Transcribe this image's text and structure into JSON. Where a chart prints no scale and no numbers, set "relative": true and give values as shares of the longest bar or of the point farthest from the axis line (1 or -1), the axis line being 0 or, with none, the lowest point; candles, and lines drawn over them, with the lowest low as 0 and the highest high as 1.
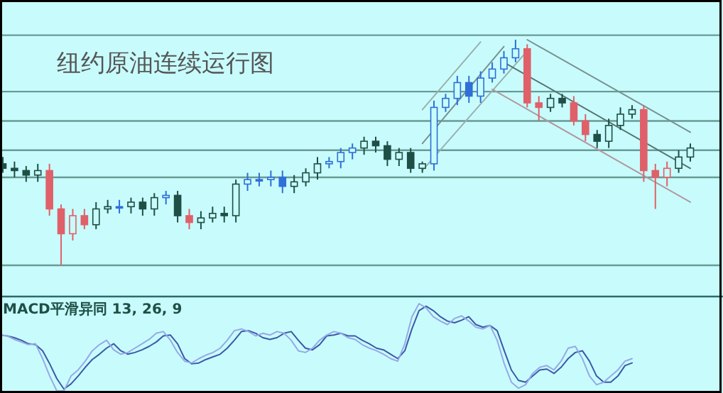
{
  "chart_data": [
    {
      "type": "candlestick",
      "title": "纽约原油连续运行图",
      "relative": true,
      "categories": [
        null,
        null,
        null,
        null,
        null,
        null,
        null,
        null,
        null,
        null,
        null,
        null,
        null,
        null,
        null,
        null,
        null,
        null,
        null,
        null,
        null,
        null,
        null,
        null,
        null,
        null,
        null,
        null,
        null,
        null,
        null,
        null,
        null,
        null,
        null,
        null,
        null,
        null,
        null,
        null,
        null,
        null,
        null,
        null,
        null,
        null,
        null,
        null,
        null,
        null,
        null,
        null,
        null,
        null,
        null,
        null,
        null,
        null,
        null,
        null
      ],
      "ohlc": [
        [
          0.45,
          0.48,
          0.41,
          0.43
        ],
        [
          0.43,
          0.46,
          0.39,
          0.42
        ],
        [
          0.42,
          0.44,
          0.37,
          0.4
        ],
        [
          0.4,
          0.45,
          0.37,
          0.42
        ],
        [
          0.42,
          0.45,
          0.22,
          0.25
        ],
        [
          0.25,
          0.27,
          0,
          0.14
        ],
        [
          0.14,
          0.25,
          0.11,
          0.22
        ],
        [
          0.22,
          0.25,
          0.16,
          0.18
        ],
        [
          0.18,
          0.28,
          0.16,
          0.25
        ],
        [
          0.25,
          0.29,
          0.23,
          0.26
        ],
        [
          0.26,
          0.29,
          0.23,
          0.26
        ],
        [
          0.26,
          0.3,
          0.23,
          0.28
        ],
        [
          0.28,
          0.3,
          0.22,
          0.25
        ],
        [
          0.25,
          0.32,
          0.22,
          0.3
        ],
        [
          0.3,
          0.33,
          0.27,
          0.31
        ],
        [
          0.31,
          0.33,
          0.19,
          0.22
        ],
        [
          0.22,
          0.25,
          0.16,
          0.19
        ],
        [
          0.19,
          0.24,
          0.16,
          0.21
        ],
        [
          0.21,
          0.26,
          0.19,
          0.23
        ],
        [
          0.23,
          0.26,
          0.19,
          0.22
        ],
        [
          0.22,
          0.38,
          0.19,
          0.36
        ],
        [
          0.36,
          0.41,
          0.33,
          0.38
        ],
        [
          0.38,
          0.41,
          0.35,
          0.38
        ],
        [
          0.38,
          0.42,
          0.35,
          0.39
        ],
        [
          0.39,
          0.42,
          0.32,
          0.35
        ],
        [
          0.35,
          0.4,
          0.32,
          0.37
        ],
        [
          0.37,
          0.43,
          0.35,
          0.41
        ],
        [
          0.41,
          0.48,
          0.38,
          0.45
        ],
        [
          0.45,
          0.48,
          0.43,
          0.46
        ],
        [
          0.46,
          0.52,
          0.43,
          0.5
        ],
        [
          0.5,
          0.54,
          0.47,
          0.52
        ],
        [
          0.52,
          0.57,
          0.49,
          0.55
        ],
        [
          0.55,
          0.57,
          0.5,
          0.53
        ],
        [
          0.53,
          0.55,
          0.44,
          0.47
        ],
        [
          0.47,
          0.52,
          0.44,
          0.5
        ],
        [
          0.5,
          0.52,
          0.41,
          0.43
        ],
        [
          0.43,
          0.46,
          0.41,
          0.45
        ],
        [
          0.45,
          0.73,
          0.42,
          0.7
        ],
        [
          0.7,
          0.76,
          0.68,
          0.74
        ],
        [
          0.74,
          0.84,
          0.71,
          0.81
        ],
        [
          0.81,
          0.84,
          0.72,
          0.75
        ],
        [
          0.75,
          0.86,
          0.72,
          0.83
        ],
        [
          0.83,
          0.9,
          0.81,
          0.87
        ],
        [
          0.87,
          0.95,
          0.85,
          0.92
        ],
        [
          0.92,
          1.0,
          0.9,
          0.96
        ],
        [
          0.96,
          0.98,
          0.7,
          0.72
        ],
        [
          0.72,
          0.75,
          0.64,
          0.7
        ],
        [
          0.7,
          0.76,
          0.68,
          0.74
        ],
        [
          0.74,
          0.76,
          0.7,
          0.72
        ],
        [
          0.72,
          0.75,
          0.62,
          0.64
        ],
        [
          0.64,
          0.67,
          0.55,
          0.58
        ],
        [
          0.58,
          0.6,
          0.52,
          0.55
        ],
        [
          0.55,
          0.65,
          0.52,
          0.62
        ],
        [
          0.62,
          0.7,
          0.6,
          0.67
        ],
        [
          0.67,
          0.71,
          0.65,
          0.69
        ],
        [
          0.69,
          0.71,
          0.37,
          0.42
        ],
        [
          0.42,
          0.45,
          0.25,
          0.39
        ],
        [
          0.39,
          0.46,
          0.35,
          0.43
        ],
        [
          0.43,
          0.51,
          0.41,
          0.48
        ],
        [
          0.48,
          0.54,
          0.46,
          0.52
        ]
      ],
      "colors": [
        "#1f4f46",
        "#1f4f46",
        "#1f4f46",
        "#1f4f46",
        "#e0606a",
        "#e0606a",
        "#e0606a",
        "#e0606a",
        "#1f4f46",
        "#1f4f46",
        "#2f6fd8",
        "#1f4f46",
        "#1f4f46",
        "#1f4f46",
        "#2f6fd8",
        "#1f4f46",
        "#e0606a",
        "#1f4f46",
        "#1f4f46",
        "#1f4f46",
        "#1f4f46",
        "#2f6fd8",
        "#2f6fd8",
        "#2f6fd8",
        "#2f6fd8",
        "#1f4f46",
        "#1f4f46",
        "#1f4f46",
        "#2f6fd8",
        "#2f6fd8",
        "#2f6fd8",
        "#1f4f46",
        "#1f4f46",
        "#1f4f46",
        "#1f4f46",
        "#1f4f46",
        "#1f4f46",
        "#2f6fd8",
        "#2f6fd8",
        "#2f6fd8",
        "#2f6fd8",
        "#2f6fd8",
        "#2f6fd8",
        "#2f6fd8",
        "#2f6fd8",
        "#e0606a",
        "#e0606a",
        "#1f4f46",
        "#1f4f46",
        "#e0606a",
        "#e0606a",
        "#1f4f46",
        "#1f4f46",
        "#1f4f46",
        "#1f4f46",
        "#e0606a",
        "#e0606a",
        "#e0606a",
        "#1f4f46",
        "#1f4f46"
      ],
      "ref_lines": [
        {
          "axis": "y",
          "value": 1.02,
          "color": "#6a9a96"
        },
        {
          "axis": "y",
          "value": 0.77,
          "color": "#6a9a96"
        },
        {
          "axis": "y",
          "value": 0.64,
          "color": "#6a9a96"
        },
        {
          "axis": "y",
          "value": 0.51,
          "color": "#6a9a96"
        },
        {
          "axis": "y",
          "value": 0.39,
          "color": "#6a9a96"
        },
        {
          "axis": "y",
          "value": 0,
          "color": "#6a9a96"
        }
      ],
      "series": [
        {
          "type": "line",
          "color": "#9ab0b0",
          "values": [
            null,
            null,
            null,
            null,
            null,
            null,
            null,
            null,
            null,
            null,
            null,
            null,
            null,
            null,
            null,
            null,
            null,
            null,
            null,
            null,
            null,
            null,
            null,
            null,
            null,
            null,
            null,
            null,
            null,
            null,
            null,
            null,
            null,
            null,
            null,
            null,
            0.42,
            null,
            null,
            null,
            null,
            null,
            null,
            null,
            null,
            0.95,
            null,
            null,
            null,
            null,
            null,
            null,
            null,
            null,
            null,
            null,
            null,
            null,
            null,
            null
          ]
        },
        {
          "type": "line",
          "color": "#7a9090",
          "values": [
            null,
            null,
            null,
            null,
            null,
            null,
            null,
            null,
            null,
            null,
            null,
            null,
            null,
            null,
            null,
            null,
            null,
            null,
            null,
            null,
            null,
            null,
            null,
            null,
            null,
            null,
            null,
            null,
            null,
            null,
            null,
            null,
            null,
            null,
            null,
            null,
            0.54,
            null,
            null,
            null,
            null,
            null,
            null,
            0.97,
            null,
            null,
            null,
            null,
            null,
            null,
            null,
            null,
            null,
            null,
            null,
            null,
            null,
            null,
            null,
            null
          ]
        },
        {
          "type": "line",
          "color": "#9ab0b0",
          "values": [
            null,
            null,
            null,
            null,
            null,
            null,
            null,
            null,
            null,
            null,
            null,
            null,
            null,
            null,
            null,
            null,
            null,
            null,
            null,
            null,
            null,
            null,
            null,
            null,
            null,
            null,
            null,
            null,
            null,
            null,
            null,
            null,
            null,
            null,
            null,
            null,
            0.69,
            null,
            null,
            null,
            null,
            0.99,
            null,
            null,
            null,
            null,
            null,
            null,
            null,
            null,
            null,
            null,
            null,
            null,
            null,
            null,
            null,
            null,
            null,
            null
          ]
        },
        {
          "type": "line",
          "color": "#7a9090",
          "values": [
            null,
            null,
            null,
            null,
            null,
            null,
            null,
            null,
            null,
            null,
            null,
            null,
            null,
            null,
            null,
            null,
            null,
            null,
            null,
            null,
            null,
            null,
            null,
            null,
            null,
            null,
            null,
            null,
            null,
            null,
            null,
            null,
            null,
            null,
            null,
            null,
            null,
            null,
            null,
            null,
            null,
            null,
            null,
            null,
            null,
            1.0,
            null,
            null,
            null,
            null,
            null,
            null,
            null,
            null,
            null,
            null,
            null,
            null,
            null,
            0.59
          ]
        },
        {
          "type": "line",
          "color": "#5a7474",
          "values": [
            null,
            null,
            null,
            null,
            null,
            null,
            null,
            null,
            null,
            null,
            null,
            null,
            null,
            null,
            null,
            null,
            null,
            null,
            null,
            null,
            null,
            null,
            null,
            null,
            null,
            null,
            null,
            null,
            null,
            null,
            null,
            null,
            null,
            null,
            null,
            null,
            null,
            null,
            null,
            null,
            null,
            null,
            null,
            0.9,
            null,
            null,
            null,
            null,
            null,
            null,
            null,
            null,
            null,
            null,
            null,
            null,
            null,
            null,
            null,
            0.43
          ]
        },
        {
          "type": "line",
          "color": "#b09aa0",
          "values": [
            null,
            null,
            null,
            null,
            null,
            null,
            null,
            null,
            null,
            null,
            null,
            null,
            null,
            null,
            null,
            null,
            null,
            null,
            null,
            null,
            null,
            null,
            null,
            null,
            null,
            null,
            null,
            null,
            null,
            null,
            null,
            null,
            null,
            null,
            null,
            null,
            null,
            null,
            null,
            null,
            null,
            null,
            0.78,
            null,
            null,
            null,
            null,
            null,
            null,
            null,
            null,
            null,
            null,
            null,
            null,
            null,
            null,
            null,
            null,
            0.28
          ]
        }
      ]
    },
    {
      "type": "line",
      "title": "MACD平滑异同 13, 26, 9",
      "relative": true,
      "categories": [
        null,
        null,
        null,
        null,
        null,
        null,
        null,
        null,
        null,
        null,
        null,
        null,
        null,
        null,
        null,
        null,
        null,
        null,
        null,
        null,
        null,
        null,
        null,
        null,
        null,
        null,
        null,
        null,
        null,
        null,
        null,
        null,
        null,
        null,
        null,
        null,
        null,
        null,
        null,
        null,
        null,
        null,
        null,
        null,
        null,
        null,
        null,
        null,
        null,
        null,
        null,
        null,
        null,
        null,
        null,
        null,
        null,
        null,
        null,
        null,
        null,
        null,
        null,
        null,
        null,
        null,
        null,
        null,
        null,
        null,
        null,
        null,
        null,
        null,
        null,
        null,
        null,
        null,
        null,
        null,
        null,
        null,
        null,
        null,
        null,
        null,
        null,
        null,
        null,
        null
      ],
      "series": [
        {
          "color": "#3a5aa8",
          "values": [
            0.64,
            0.63,
            0.61,
            0.58,
            0.54,
            0.53,
            0.46,
            0.31,
            0.14,
            0.02,
            0.08,
            0.17,
            0.27,
            0.36,
            0.42,
            0.49,
            0.54,
            0.46,
            0.42,
            0.44,
            0.47,
            0.51,
            0.56,
            0.63,
            0.64,
            0.54,
            0.37,
            0.31,
            0.32,
            0.36,
            0.39,
            0.42,
            0.49,
            0.58,
            0.68,
            0.69,
            0.66,
            0.61,
            0.59,
            0.61,
            0.66,
            0.68,
            0.58,
            0.49,
            0.47,
            0.53,
            0.63,
            0.64,
            0.66,
            0.63,
            0.63,
            0.58,
            0.54,
            0.49,
            0.47,
            0.42,
            0.37,
            0.46,
            0.71,
            0.92,
            0.97,
            0.92,
            0.85,
            0.8,
            0.78,
            0.81,
            0.85,
            0.76,
            0.73,
            0.75,
            0.69,
            0.46,
            0.24,
            0.12,
            0.1,
            0.17,
            0.24,
            0.25,
            0.2,
            0.27,
            0.37,
            0.44,
            0.46,
            0.34,
            0.17,
            0.1,
            0.1,
            0.17,
            0.29,
            0.32
          ]
        },
        {
          "color": "#98a8e8",
          "values": [
            0.64,
            0.63,
            0.59,
            0.56,
            0.53,
            0.54,
            0.37,
            0.17,
            0.0,
            0.0,
            0.17,
            0.24,
            0.34,
            0.46,
            0.53,
            0.58,
            0.47,
            0.42,
            0.44,
            0.49,
            0.54,
            0.59,
            0.66,
            0.68,
            0.58,
            0.44,
            0.34,
            0.32,
            0.37,
            0.41,
            0.44,
            0.49,
            0.58,
            0.69,
            0.71,
            0.68,
            0.63,
            0.66,
            0.64,
            0.68,
            0.66,
            0.58,
            0.46,
            0.44,
            0.49,
            0.58,
            0.64,
            0.68,
            0.66,
            0.61,
            0.59,
            0.53,
            0.49,
            0.46,
            0.42,
            0.37,
            0.34,
            0.54,
            0.85,
            1.0,
            0.95,
            0.85,
            0.8,
            0.76,
            0.83,
            0.86,
            0.8,
            0.73,
            0.71,
            0.75,
            0.58,
            0.31,
            0.1,
            0.03,
            0.07,
            0.2,
            0.27,
            0.29,
            0.24,
            0.34,
            0.49,
            0.51,
            0.37,
            0.17,
            0.07,
            0.1,
            0.17,
            0.24,
            0.34,
            0.37
          ]
        }
      ]
    }
  ]
}
